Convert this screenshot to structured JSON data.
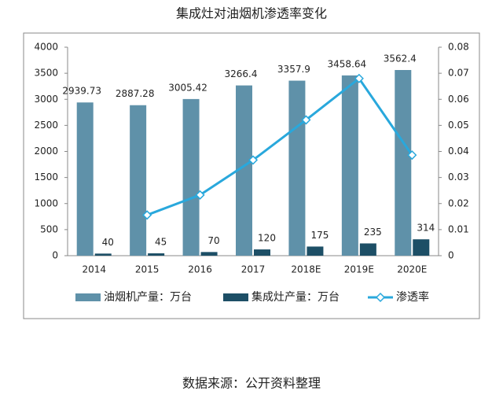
{
  "chart_data": {
    "type": "bar-line",
    "title": "集成灶对油烟机渗透率变化",
    "source": "数据来源：公开资料整理",
    "categories": [
      "2014",
      "2015",
      "2016",
      "2017",
      "2018E",
      "2019E",
      "2020E"
    ],
    "series": [
      {
        "name": "油烟机产量：万台",
        "type": "bar",
        "color": "#5f91a9",
        "values": [
          2939.73,
          2887.28,
          3005.42,
          3266.4,
          3357.9,
          3458.64,
          3562.4
        ]
      },
      {
        "name": "集成灶产量：万台",
        "type": "bar",
        "color": "#1d4f66",
        "values": [
          40,
          45,
          70,
          120,
          175,
          235,
          314
        ]
      },
      {
        "name": "渗透率",
        "type": "line",
        "axis": "y2",
        "color": "#29a8dc",
        "values": [
          null,
          0.0156,
          0.0233,
          0.0367,
          0.0521,
          0.068,
          0.0386
        ]
      }
    ],
    "ylim": [
      0,
      4000
    ],
    "yticks": [
      0,
      500,
      1000,
      1500,
      2000,
      2500,
      3000,
      3500,
      4000
    ],
    "y2lim": [
      0,
      0.08
    ],
    "y2ticks": [
      0,
      0.01,
      0.02,
      0.03,
      0.04,
      0.05,
      0.06,
      0.07,
      0.08
    ],
    "grid": false,
    "legend": "bottom"
  }
}
